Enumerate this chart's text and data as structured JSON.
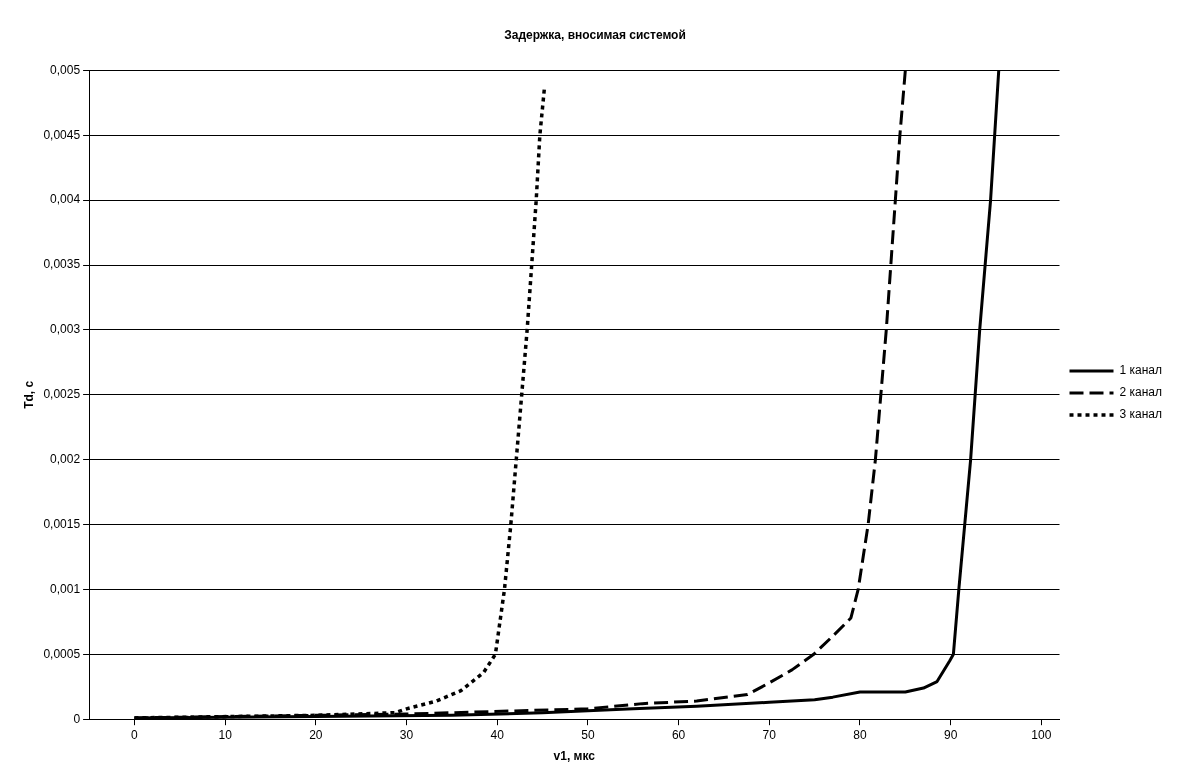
{
  "chart_data": {
    "type": "line",
    "title": "Задержка, вносимая системой",
    "xlabel": "v1, мкс",
    "ylabel": "Td, с",
    "xlim": [
      -5,
      102
    ],
    "xticks": [
      0,
      10,
      20,
      30,
      40,
      50,
      60,
      70,
      80,
      90,
      100
    ],
    "ylim": [
      0,
      0.005
    ],
    "yticks": [
      {
        "value": 0,
        "label": "0"
      },
      {
        "value": 0.0005,
        "label": "0,0005"
      },
      {
        "value": 0.001,
        "label": "0,001"
      },
      {
        "value": 0.0015,
        "label": "0,0015"
      },
      {
        "value": 0.002,
        "label": "0,002"
      },
      {
        "value": 0.0025,
        "label": "0,0025"
      },
      {
        "value": 0.003,
        "label": "0,003"
      },
      {
        "value": 0.0035,
        "label": "0,0035"
      },
      {
        "value": 0.004,
        "label": "0,004"
      },
      {
        "value": 0.0045,
        "label": "0,0045"
      },
      {
        "value": 0.005,
        "label": "0,005"
      }
    ],
    "grid": "y",
    "legend": "right",
    "marker": "none",
    "series": [
      {
        "name": "1 канал",
        "color": "#000000",
        "line_style": "solid",
        "x": [
          0,
          20,
          35,
          45,
          55,
          62,
          70,
          75,
          77,
          80,
          85,
          87,
          88.5,
          89.9,
          90.3,
          90.9,
          92.2,
          93.2,
          94.4,
          95.3
        ],
        "values": [
          1e-05,
          2e-05,
          3e-05,
          5e-05,
          8e-05,
          0.0001,
          0.00013,
          0.00015,
          0.00017,
          0.00021,
          0.00021,
          0.00024,
          0.00029,
          0.00045,
          0.0005,
          0.001,
          0.002,
          0.003,
          0.004,
          0.005
        ]
      },
      {
        "name": "2 канал",
        "color": "#000000",
        "line_style": "dashed",
        "x": [
          0,
          20,
          30,
          50,
          56,
          62,
          67.6,
          70,
          72.5,
          74.9,
          77,
          79,
          79.8,
          80.9,
          81.7,
          82.3,
          82.9,
          83.4,
          83.9,
          84.4,
          85
        ],
        "values": [
          1e-05,
          3e-05,
          4e-05,
          8e-05,
          0.00012,
          0.00014,
          0.00019,
          0.00028,
          0.00038,
          0.0005,
          0.00064,
          0.00078,
          0.001,
          0.0015,
          0.002,
          0.0025,
          0.003,
          0.0035,
          0.004,
          0.0045,
          0.005
        ]
      },
      {
        "name": "3 канал",
        "color": "#000000",
        "line_style": "dotted",
        "x": [
          0,
          20,
          28.7,
          30,
          33.3,
          36,
          38.5,
          39.8,
          40.8,
          41.5,
          42.1,
          42.7,
          43.3,
          43.8,
          44.3,
          44.7,
          45.2
        ],
        "values": [
          1e-05,
          3e-05,
          5e-05,
          8e-05,
          0.00014,
          0.00022,
          0.00036,
          0.0005,
          0.001,
          0.0015,
          0.002,
          0.0025,
          0.003,
          0.0035,
          0.004,
          0.0045,
          0.00486
        ]
      }
    ]
  }
}
